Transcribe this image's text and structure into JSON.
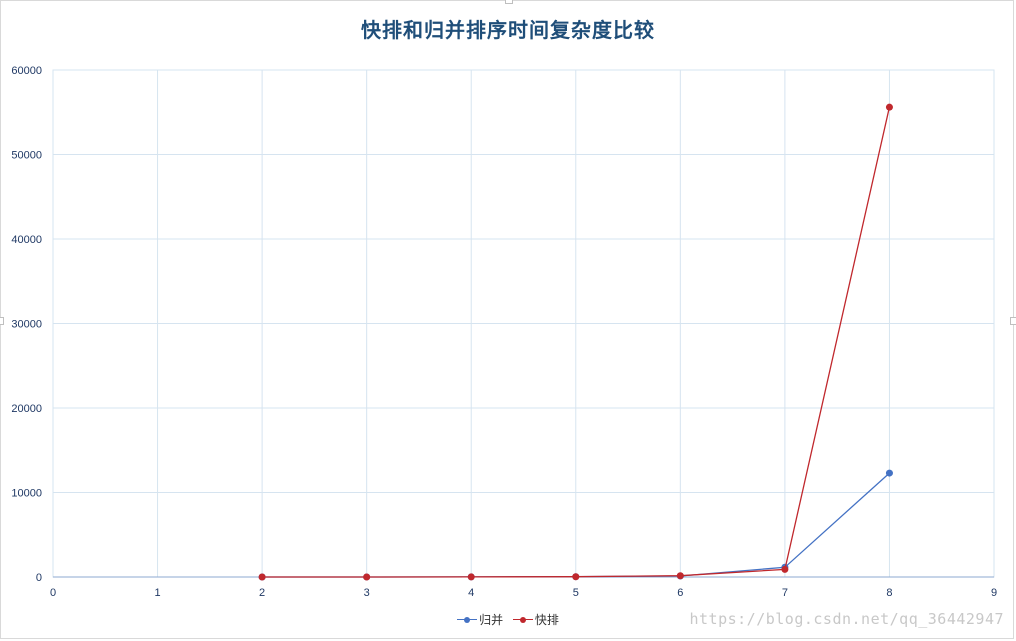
{
  "chart_data": {
    "type": "line",
    "title": "快排和归并排序时间复杂度比较",
    "xlabel": "",
    "ylabel": "",
    "xlim": [
      0,
      9
    ],
    "ylim": [
      0,
      60000
    ],
    "x_ticks": [
      0,
      1,
      2,
      3,
      4,
      5,
      6,
      7,
      8,
      9
    ],
    "y_ticks": [
      0,
      10000,
      20000,
      30000,
      40000,
      50000,
      60000
    ],
    "grid": true,
    "legend_position": "bottom",
    "series": [
      {
        "name": "归并",
        "color": "#4472c4",
        "x": [
          2,
          3,
          4,
          5,
          6,
          7,
          8
        ],
        "y": [
          2,
          5,
          12,
          35,
          120,
          1150,
          12300
        ]
      },
      {
        "name": "快排",
        "color": "#c0282d",
        "x": [
          2,
          3,
          4,
          5,
          6,
          7,
          8
        ],
        "y": [
          1,
          3,
          10,
          30,
          150,
          900,
          55600
        ]
      }
    ]
  },
  "watermark": "https://blog.csdn.net/qq_36442947"
}
